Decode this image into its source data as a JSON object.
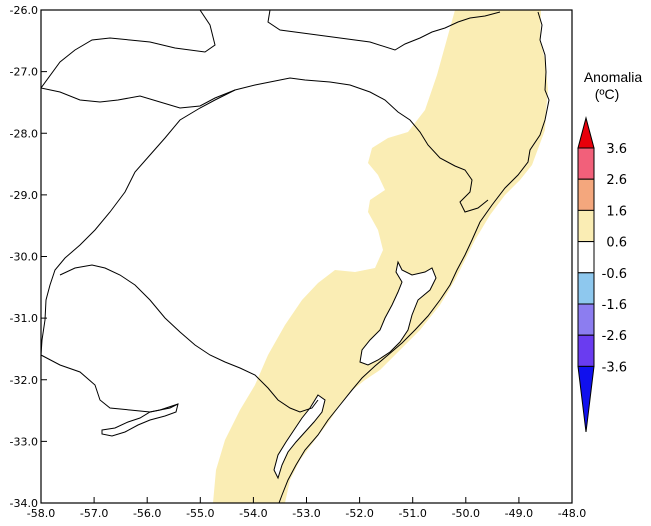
{
  "map": {
    "lon_ticks": [
      "-58.0",
      "-57.0",
      "-56.0",
      "-55.0",
      "-54.0",
      "-53.0",
      "-52.0",
      "-51.0",
      "-50.0",
      "-49.0",
      "-48.0"
    ],
    "lat_ticks": [
      "-26.0",
      "-27.0",
      "-28.0",
      "-29.0",
      "-30.0",
      "-31.0",
      "-32.0",
      "-33.0",
      "-34.0"
    ],
    "lon_range": [
      -58.0,
      -48.0
    ],
    "lat_range": [
      -34.0,
      -26.0
    ]
  },
  "legend": {
    "title_line1": "Anomalia",
    "title_line2": "(ºC)",
    "labels": [
      "3.6",
      "2.6",
      "1.6",
      "0.6",
      "-0.6",
      "-1.6",
      "-2.6",
      "-3.6"
    ],
    "colors": {
      "top_arrow": "#e8000b",
      "band_2_6_to_3_6": "#f2607a",
      "band_1_6_to_2_6": "#f4a77d",
      "band_0_6_to_1_6": "#faedb4",
      "band_neutral": "#ffffff",
      "band_minus_0_6_to_minus_1_6": "#8ec8ee",
      "band_minus_1_6_to_minus_2_6": "#8c7df0",
      "band_minus_2_6_to_minus_3_6": "#6a3cf0",
      "bottom_arrow": "#1010ee"
    }
  },
  "colors": {
    "anomaly_fill": "#faedb4",
    "boundary": "#000000",
    "background": "#ffffff"
  }
}
